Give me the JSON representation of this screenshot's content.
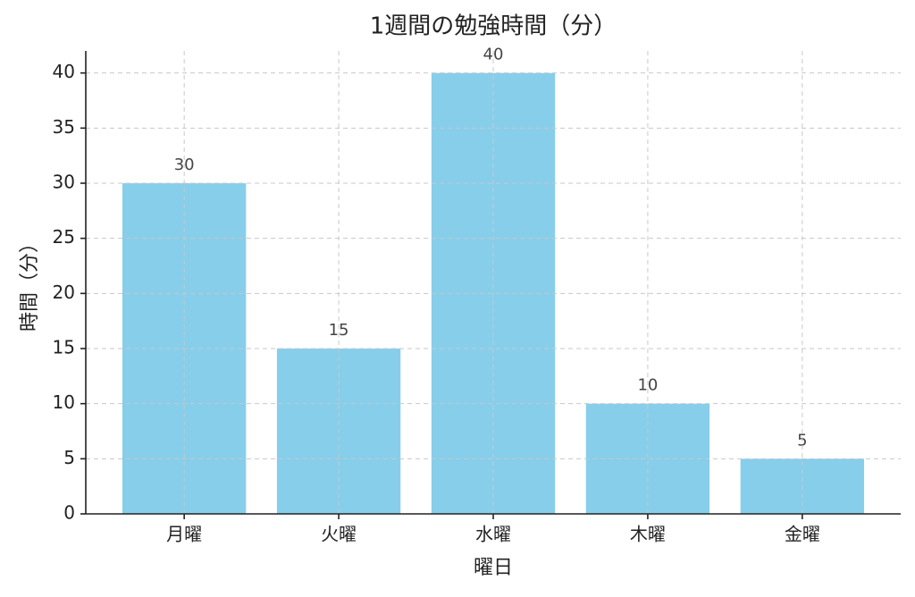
{
  "chart_data": {
    "type": "bar",
    "title": "1週間の勉強時間（分）",
    "x_label": "曜日",
    "y_label": "時間（分）",
    "categories": [
      "月曜",
      "火曜",
      "水曜",
      "木曜",
      "金曜"
    ],
    "values": [
      30,
      15,
      40,
      10,
      5
    ],
    "color": "#87ceeb",
    "ylim": [
      0,
      42
    ],
    "yticks": [
      0,
      5,
      10,
      15,
      20,
      25,
      30,
      35,
      40
    ],
    "grid": true,
    "data_labels": true
  }
}
